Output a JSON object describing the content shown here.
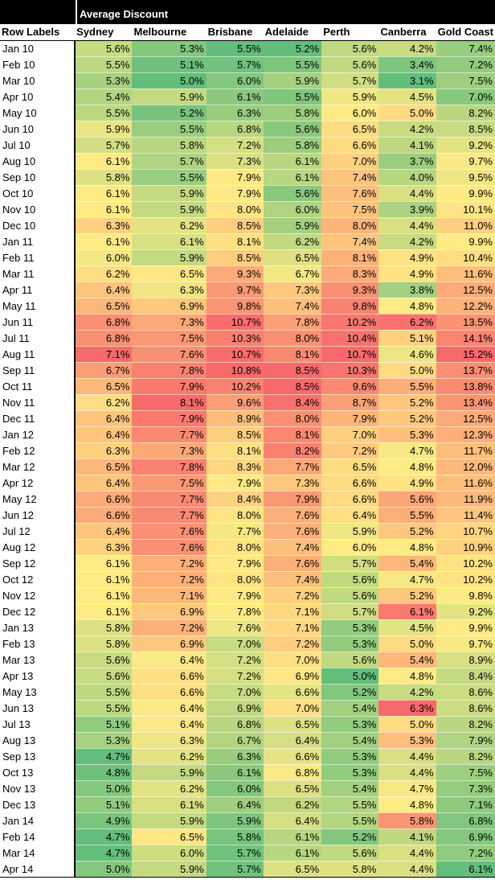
{
  "sheet": {
    "value_header": "Average Discount",
    "row_header": "Row Labels",
    "columns": [
      "Sydney",
      "Melbourne",
      "Brisbane",
      "Adelaide",
      "Perth",
      "Canberra",
      "Gold Coast"
    ],
    "rows": [
      {
        "label": "Jan 10",
        "values": [
          "5.6%",
          "5.3%",
          "5.5%",
          "5.2%",
          "5.6%",
          "4.2%",
          "7.4%"
        ]
      },
      {
        "label": "Feb 10",
        "values": [
          "5.5%",
          "5.1%",
          "5.7%",
          "5.5%",
          "5.6%",
          "3.4%",
          "7.2%"
        ]
      },
      {
        "label": "Mar 10",
        "values": [
          "5.3%",
          "5.0%",
          "6.0%",
          "5.9%",
          "5.7%",
          "3.1%",
          "7.5%"
        ]
      },
      {
        "label": "Apr 10",
        "values": [
          "5.4%",
          "5.9%",
          "6.1%",
          "5.5%",
          "5.9%",
          "4.5%",
          "7.0%"
        ]
      },
      {
        "label": "May 10",
        "values": [
          "5.5%",
          "5.2%",
          "6.3%",
          "5.8%",
          "6.0%",
          "5.0%",
          "8.2%"
        ]
      },
      {
        "label": "Jun 10",
        "values": [
          "5.9%",
          "5.5%",
          "6.8%",
          "5.6%",
          "6.5%",
          "4.2%",
          "8.5%"
        ]
      },
      {
        "label": "Jul 10",
        "values": [
          "5.7%",
          "5.8%",
          "7.2%",
          "5.8%",
          "6.6%",
          "4.1%",
          "9.2%"
        ]
      },
      {
        "label": "Aug 10",
        "values": [
          "6.1%",
          "5.7%",
          "7.3%",
          "6.1%",
          "7.0%",
          "3.7%",
          "9.7%"
        ]
      },
      {
        "label": "Sep 10",
        "values": [
          "5.8%",
          "5.5%",
          "7.9%",
          "6.1%",
          "7.4%",
          "4.0%",
          "9.5%"
        ]
      },
      {
        "label": "Oct 10",
        "values": [
          "6.1%",
          "5.9%",
          "7.9%",
          "5.6%",
          "7.6%",
          "4.4%",
          "9.9%"
        ]
      },
      {
        "label": "Nov 10",
        "values": [
          "6.1%",
          "5.9%",
          "8.0%",
          "6.0%",
          "7.5%",
          "3.9%",
          "10.1%"
        ]
      },
      {
        "label": "Dec 10",
        "values": [
          "6.3%",
          "6.2%",
          "8.5%",
          "5.9%",
          "8.0%",
          "4.4%",
          "11.0%"
        ]
      },
      {
        "label": "Jan 11",
        "values": [
          "6.1%",
          "6.1%",
          "8.1%",
          "6.2%",
          "7.4%",
          "4.2%",
          "9.9%"
        ]
      },
      {
        "label": "Feb 11",
        "values": [
          "6.0%",
          "5.9%",
          "8.5%",
          "6.5%",
          "8.1%",
          "4.9%",
          "10.4%"
        ]
      },
      {
        "label": "Mar 11",
        "values": [
          "6.2%",
          "6.5%",
          "9.3%",
          "6.7%",
          "8.3%",
          "4.9%",
          "11.6%"
        ]
      },
      {
        "label": "Apr 11",
        "values": [
          "6.4%",
          "6.3%",
          "9.7%",
          "7.3%",
          "9.3%",
          "3.8%",
          "12.5%"
        ]
      },
      {
        "label": "May 11",
        "values": [
          "6.5%",
          "6.9%",
          "9.8%",
          "7.4%",
          "9.8%",
          "4.8%",
          "12.2%"
        ]
      },
      {
        "label": "Jun 11",
        "values": [
          "6.8%",
          "7.3%",
          "10.7%",
          "7.8%",
          "10.2%",
          "6.2%",
          "13.5%"
        ]
      },
      {
        "label": "Jul 11",
        "values": [
          "6.8%",
          "7.5%",
          "10.3%",
          "8.0%",
          "10.4%",
          "5.1%",
          "14.1%"
        ]
      },
      {
        "label": "Aug 11",
        "values": [
          "7.1%",
          "7.6%",
          "10.7%",
          "8.1%",
          "10.7%",
          "4.6%",
          "15.2%"
        ]
      },
      {
        "label": "Sep 11",
        "values": [
          "6.7%",
          "7.8%",
          "10.8%",
          "8.5%",
          "10.3%",
          "5.0%",
          "13.7%"
        ]
      },
      {
        "label": "Oct 11",
        "values": [
          "6.5%",
          "7.9%",
          "10.2%",
          "8.5%",
          "9.6%",
          "5.5%",
          "13.8%"
        ]
      },
      {
        "label": "Nov 11",
        "values": [
          "6.2%",
          "8.1%",
          "9.6%",
          "8.4%",
          "8.7%",
          "5.2%",
          "13.4%"
        ]
      },
      {
        "label": "Dec 11",
        "values": [
          "6.4%",
          "7.9%",
          "8.9%",
          "8.0%",
          "7.9%",
          "5.2%",
          "12.5%"
        ]
      },
      {
        "label": "Jan 12",
        "values": [
          "6.4%",
          "7.7%",
          "8.5%",
          "8.1%",
          "7.0%",
          "5.3%",
          "12.3%"
        ]
      },
      {
        "label": "Feb 12",
        "values": [
          "6.3%",
          "7.3%",
          "8.1%",
          "8.2%",
          "7.2%",
          "4.7%",
          "11.7%"
        ]
      },
      {
        "label": "Mar 12",
        "values": [
          "6.5%",
          "7.8%",
          "8.3%",
          "7.7%",
          "6.5%",
          "4.8%",
          "12.0%"
        ]
      },
      {
        "label": "Apr 12",
        "values": [
          "6.4%",
          "7.5%",
          "7.9%",
          "7.3%",
          "6.6%",
          "4.9%",
          "11.6%"
        ]
      },
      {
        "label": "May 12",
        "values": [
          "6.6%",
          "7.7%",
          "8.4%",
          "7.9%",
          "6.6%",
          "5.6%",
          "11.9%"
        ]
      },
      {
        "label": "Jun 12",
        "values": [
          "6.6%",
          "7.7%",
          "8.0%",
          "7.6%",
          "6.4%",
          "5.5%",
          "11.4%"
        ]
      },
      {
        "label": "Jul 12",
        "values": [
          "6.4%",
          "7.6%",
          "7.7%",
          "7.6%",
          "5.9%",
          "5.2%",
          "10.7%"
        ]
      },
      {
        "label": "Aug 12",
        "values": [
          "6.3%",
          "7.6%",
          "8.0%",
          "7.4%",
          "6.0%",
          "4.8%",
          "10.9%"
        ]
      },
      {
        "label": "Sep 12",
        "values": [
          "6.1%",
          "7.2%",
          "7.9%",
          "7.6%",
          "5.7%",
          "5.4%",
          "10.2%"
        ]
      },
      {
        "label": "Oct 12",
        "values": [
          "6.1%",
          "7.2%",
          "8.0%",
          "7.4%",
          "5.6%",
          "4.7%",
          "10.2%"
        ]
      },
      {
        "label": "Nov 12",
        "values": [
          "6.1%",
          "7.1%",
          "7.9%",
          "7.2%",
          "5.6%",
          "5.2%",
          "9.8%"
        ]
      },
      {
        "label": "Dec 12",
        "values": [
          "6.1%",
          "6.9%",
          "7.8%",
          "7.1%",
          "5.7%",
          "6.1%",
          "9.2%"
        ]
      },
      {
        "label": "Jan 13",
        "values": [
          "5.8%",
          "7.2%",
          "7.6%",
          "7.1%",
          "5.3%",
          "4.5%",
          "9.9%"
        ]
      },
      {
        "label": "Feb 13",
        "values": [
          "5.8%",
          "6.9%",
          "7.0%",
          "7.2%",
          "5.3%",
          "5.0%",
          "9.7%"
        ]
      },
      {
        "label": "Mar 13",
        "values": [
          "5.6%",
          "6.4%",
          "7.2%",
          "7.0%",
          "5.6%",
          "5.4%",
          "8.9%"
        ]
      },
      {
        "label": "Apr 13",
        "values": [
          "5.6%",
          "6.6%",
          "7.2%",
          "6.9%",
          "5.0%",
          "4.8%",
          "8.4%"
        ]
      },
      {
        "label": "May 13",
        "values": [
          "5.5%",
          "6.6%",
          "7.0%",
          "6.6%",
          "5.2%",
          "4.2%",
          "8.6%"
        ]
      },
      {
        "label": "Jun 13",
        "values": [
          "5.5%",
          "6.4%",
          "6.9%",
          "7.0%",
          "5.4%",
          "6.3%",
          "8.6%"
        ]
      },
      {
        "label": "Jul 13",
        "values": [
          "5.1%",
          "6.4%",
          "6.8%",
          "6.5%",
          "5.3%",
          "5.0%",
          "8.2%"
        ]
      },
      {
        "label": "Aug 13",
        "values": [
          "5.3%",
          "6.3%",
          "6.7%",
          "6.4%",
          "5.4%",
          "5.3%",
          "7.9%"
        ]
      },
      {
        "label": "Sep 13",
        "values": [
          "4.7%",
          "6.2%",
          "6.3%",
          "6.6%",
          "5.3%",
          "4.4%",
          "8.2%"
        ]
      },
      {
        "label": "Oct 13",
        "values": [
          "4.8%",
          "5.9%",
          "6.1%",
          "6.8%",
          "5.3%",
          "4.4%",
          "7.5%"
        ]
      },
      {
        "label": "Nov 13",
        "values": [
          "5.0%",
          "6.2%",
          "6.0%",
          "6.5%",
          "5.4%",
          "4.7%",
          "7.3%"
        ]
      },
      {
        "label": "Dec 13",
        "values": [
          "5.1%",
          "6.1%",
          "6.4%",
          "6.2%",
          "5.5%",
          "4.8%",
          "7.1%"
        ]
      },
      {
        "label": "Jan 14",
        "values": [
          "4.9%",
          "5.9%",
          "5.9%",
          "6.4%",
          "5.5%",
          "5.8%",
          "6.8%"
        ]
      },
      {
        "label": "Feb 14",
        "values": [
          "4.7%",
          "6.5%",
          "5.8%",
          "6.1%",
          "5.2%",
          "4.1%",
          "6.9%"
        ]
      },
      {
        "label": "Mar 14",
        "values": [
          "4.7%",
          "6.0%",
          "5.7%",
          "6.1%",
          "5.6%",
          "4.4%",
          "7.2%"
        ]
      },
      {
        "label": "Apr 14",
        "values": [
          "5.0%",
          "5.9%",
          "5.7%",
          "6.5%",
          "5.8%",
          "4.4%",
          "6.1%"
        ]
      }
    ]
  },
  "colors": {
    "scale_low": "#63be7b",
    "scale_mid": "#ffeb84",
    "scale_high": "#f8696b"
  }
}
